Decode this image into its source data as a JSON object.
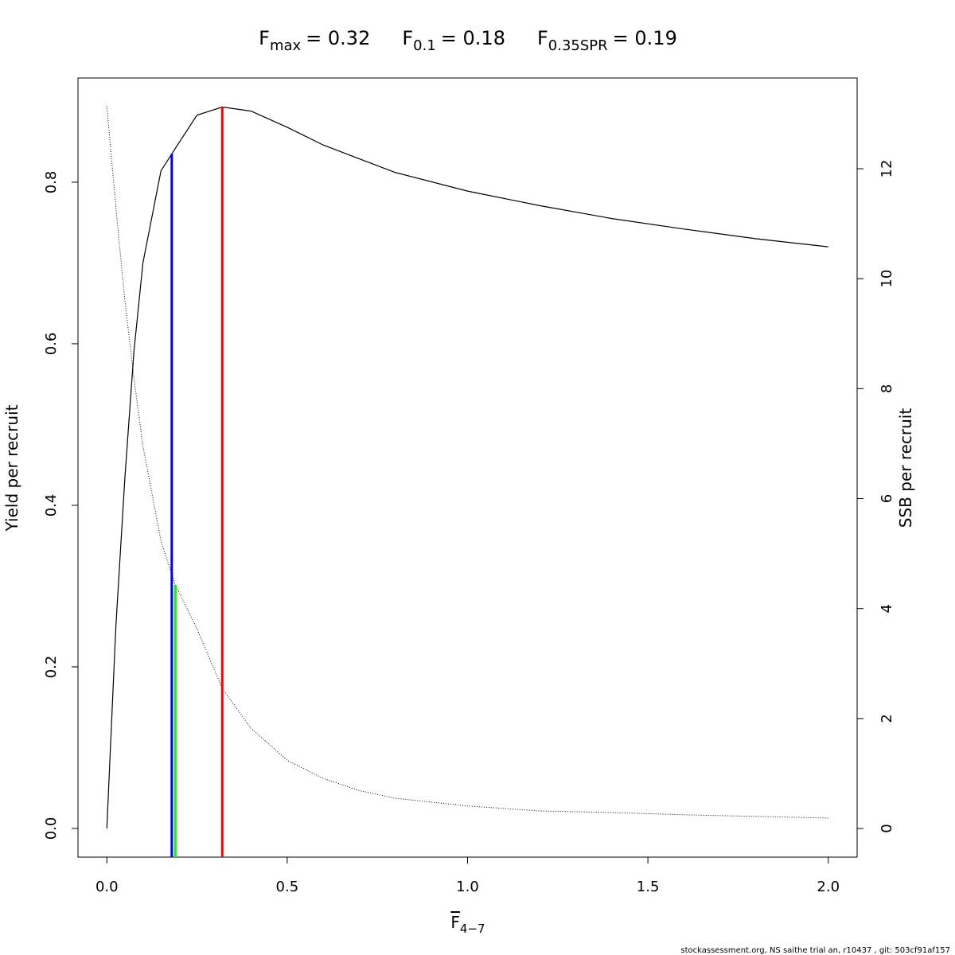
{
  "chart_data": {
    "type": "line",
    "title_parts": [
      {
        "symbol": "F",
        "sub": "max",
        "text": "= 0.32"
      },
      {
        "symbol": "F",
        "sub": "0.1",
        "text": "= 0.18"
      },
      {
        "symbol": "F",
        "sub": "0.35SPR",
        "text": "= 0.19"
      }
    ],
    "x_label": {
      "symbol": "F",
      "sub": "4−7"
    },
    "y_label": "Yield per recruit",
    "y2_label": "SSB per recruit",
    "footer": "stockassessment.org, NS saithe trial an, r10437 , git: 503cf91af157",
    "x": [
      0,
      0.025,
      0.05,
      0.075,
      0.1,
      0.15,
      0.19,
      0.25,
      0.32,
      0.4,
      0.5,
      0.6,
      0.7,
      0.8,
      1.0,
      1.2,
      1.4,
      1.6,
      1.8,
      2.0
    ],
    "series": [
      {
        "name": "Yield per recruit",
        "color": "#000000",
        "line_style": "solid",
        "axis": "y",
        "values": [
          0,
          0.25,
          0.434,
          0.59,
          0.7,
          0.814,
          0.842,
          0.883,
          0.893,
          0.888,
          0.868,
          0.846,
          0.829,
          0.812,
          0.789,
          0.771,
          0.755,
          0.742,
          0.73,
          0.72
        ]
      },
      {
        "name": "SSB per recruit",
        "color": "#000000",
        "line_style": "dotted",
        "axis": "y2",
        "values": [
          13.14,
          11.3,
          9.6,
          8.2,
          6.96,
          5.23,
          4.43,
          3.63,
          2.55,
          1.82,
          1.24,
          0.91,
          0.69,
          0.55,
          0.41,
          0.32,
          0.29,
          0.25,
          0.22,
          0.19
        ]
      }
    ],
    "reference_lines": [
      {
        "x": 0.32,
        "y_top": 0.893,
        "axis": "y",
        "color": "#ff0000"
      },
      {
        "x": 0.18,
        "y_top": 0.835,
        "axis": "y",
        "color": "#0000ff"
      },
      {
        "x": 0.19,
        "y_top": 4.43,
        "axis": "y2",
        "color": "#00ff00"
      }
    ],
    "xlim": [
      -0.08,
      2.08
    ],
    "ylim": [
      -0.0355,
      0.929
    ],
    "y2lim": [
      -0.52,
      13.65
    ],
    "xticks": [
      {
        "value": 0,
        "label": "0.0"
      },
      0.5,
      {
        "value": 1,
        "label": "1.0"
      },
      1.5,
      {
        "value": 2,
        "label": "2.0"
      }
    ],
    "yticks": [
      {
        "value": 0,
        "label": "0.0"
      },
      0.2,
      0.4,
      0.6,
      0.8
    ],
    "y2ticks": [
      0,
      2,
      4,
      6,
      8,
      10,
      12
    ]
  }
}
